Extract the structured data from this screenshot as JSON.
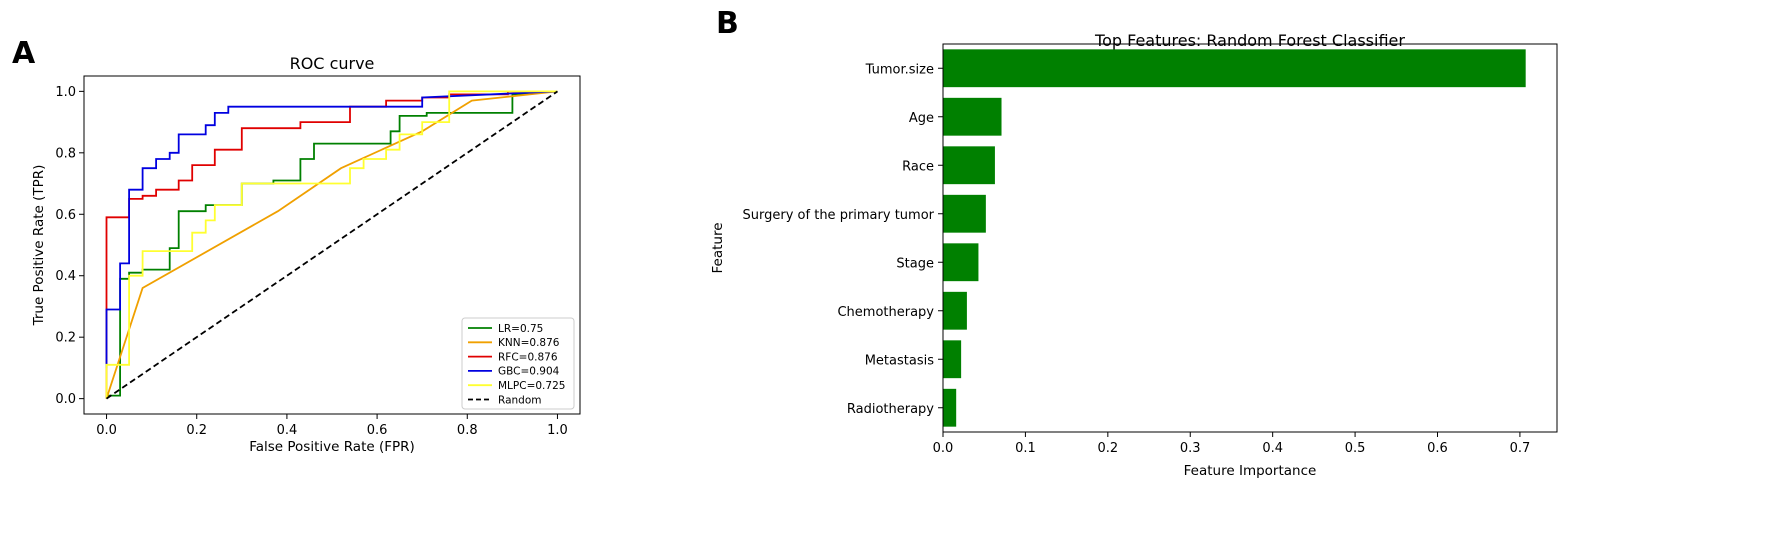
{
  "panel_labels": {
    "a": "A",
    "b": "B"
  },
  "chart_data": [
    {
      "type": "line",
      "title": "ROC curve",
      "xlabel": "False Positive Rate (FPR)",
      "ylabel": "True Positive Rate (TPR)",
      "xlim": [
        -0.05,
        1.05
      ],
      "ylim": [
        -0.05,
        1.05
      ],
      "xticks": [
        0.0,
        0.2,
        0.4,
        0.6,
        0.8,
        1.0
      ],
      "yticks": [
        0.0,
        0.2,
        0.4,
        0.6,
        0.8,
        1.0
      ],
      "xtick_labels": [
        "0.0",
        "0.2",
        "0.4",
        "0.6",
        "0.8",
        "1.0"
      ],
      "ytick_labels": [
        "0.0",
        "0.2",
        "0.4",
        "0.6",
        "0.8",
        "1.0"
      ],
      "legend_position": "lower-right",
      "series": [
        {
          "name": "LR=0.75",
          "color": "#008000",
          "style": "solid",
          "x": [
            0,
            0,
            0.03,
            0.03,
            0.03,
            0.05,
            0.05,
            0.08,
            0.08,
            0.14,
            0.14,
            0.16,
            0.16,
            0.22,
            0.22,
            0.3,
            0.3,
            0.37,
            0.37,
            0.43,
            0.43,
            0.46,
            0.46,
            0.63,
            0.63,
            0.65,
            0.65,
            0.71,
            0.71,
            0.9,
            0.9,
            1.0
          ],
          "y": [
            0,
            0.01,
            0.01,
            0.36,
            0.39,
            0.39,
            0.41,
            0.41,
            0.42,
            0.42,
            0.49,
            0.49,
            0.61,
            0.61,
            0.63,
            0.63,
            0.7,
            0.7,
            0.71,
            0.71,
            0.78,
            0.78,
            0.83,
            0.83,
            0.87,
            0.87,
            0.92,
            0.92,
            0.93,
            0.93,
            0.99,
            1.0
          ]
        },
        {
          "name": "KNN=0.876",
          "color": "#f0a000",
          "style": "solid",
          "x": [
            0,
            0.08,
            0.38,
            0.52,
            0.7,
            0.81,
            1.0
          ],
          "y": [
            0,
            0.36,
            0.61,
            0.75,
            0.87,
            0.97,
            1.0
          ]
        },
        {
          "name": "RFC=0.876",
          "color": "#e00000",
          "style": "solid",
          "x": [
            0,
            0,
            0.05,
            0.05,
            0.08,
            0.08,
            0.11,
            0.11,
            0.16,
            0.16,
            0.19,
            0.19,
            0.24,
            0.24,
            0.3,
            0.3,
            0.43,
            0.43,
            0.54,
            0.54,
            0.62,
            0.62,
            0.7,
            0.7,
            0.76,
            0.76,
            0.89,
            0.89,
            1.0
          ],
          "y": [
            0,
            0.59,
            0.59,
            0.65,
            0.65,
            0.66,
            0.66,
            0.68,
            0.68,
            0.71,
            0.71,
            0.76,
            0.76,
            0.81,
            0.81,
            0.88,
            0.88,
            0.9,
            0.9,
            0.95,
            0.95,
            0.97,
            0.97,
            0.98,
            0.98,
            0.99,
            0.99,
            1.0,
            1.0
          ]
        },
        {
          "name": "GBC=0.904",
          "color": "#0000e0",
          "style": "solid",
          "x": [
            0,
            0,
            0.03,
            0.03,
            0.05,
            0.05,
            0.08,
            0.08,
            0.11,
            0.11,
            0.14,
            0.14,
            0.16,
            0.16,
            0.22,
            0.22,
            0.24,
            0.24,
            0.27,
            0.27,
            0.7,
            0.7,
            1.0
          ],
          "y": [
            0.1,
            0.29,
            0.29,
            0.44,
            0.44,
            0.68,
            0.68,
            0.75,
            0.75,
            0.78,
            0.78,
            0.8,
            0.8,
            0.86,
            0.86,
            0.89,
            0.89,
            0.93,
            0.93,
            0.95,
            0.95,
            0.98,
            1.0
          ]
        },
        {
          "name": "MLPC=0.725",
          "color": "#ffff30",
          "style": "solid",
          "x": [
            0,
            0,
            0.05,
            0.05,
            0.08,
            0.08,
            0.19,
            0.19,
            0.22,
            0.22,
            0.24,
            0.24,
            0.3,
            0.3,
            0.54,
            0.54,
            0.57,
            0.57,
            0.62,
            0.62,
            0.65,
            0.65,
            0.7,
            0.7,
            0.76,
            0.76,
            1.0
          ],
          "y": [
            0,
            0.11,
            0.11,
            0.4,
            0.4,
            0.48,
            0.48,
            0.54,
            0.54,
            0.58,
            0.58,
            0.63,
            0.63,
            0.7,
            0.7,
            0.75,
            0.75,
            0.78,
            0.78,
            0.81,
            0.81,
            0.86,
            0.86,
            0.9,
            0.9,
            1.0,
            1.0
          ]
        },
        {
          "name": "Random",
          "color": "#000000",
          "style": "dashed",
          "x": [
            0,
            1
          ],
          "y": [
            0,
            1
          ]
        }
      ]
    },
    {
      "type": "bar",
      "orientation": "horizontal",
      "title": "Top Features: Random Forest Classifier",
      "xlabel": "Feature Importance",
      "ylabel": "Feature",
      "color": "#008000",
      "categories": [
        "Tumor.size",
        "Age",
        "Race",
        "Surgery of the primary tumor",
        "Stage",
        "Chemotherapy",
        "Metastasis",
        "Radiotherapy"
      ],
      "values": [
        0.707,
        0.071,
        0.063,
        0.052,
        0.043,
        0.029,
        0.022,
        0.016
      ],
      "xlim": [
        0.0,
        0.745
      ],
      "xticks": [
        0.0,
        0.1,
        0.2,
        0.3,
        0.4,
        0.5,
        0.6,
        0.7
      ],
      "xtick_labels": [
        "0.0",
        "0.1",
        "0.2",
        "0.3",
        "0.4",
        "0.5",
        "0.6",
        "0.7"
      ]
    }
  ]
}
